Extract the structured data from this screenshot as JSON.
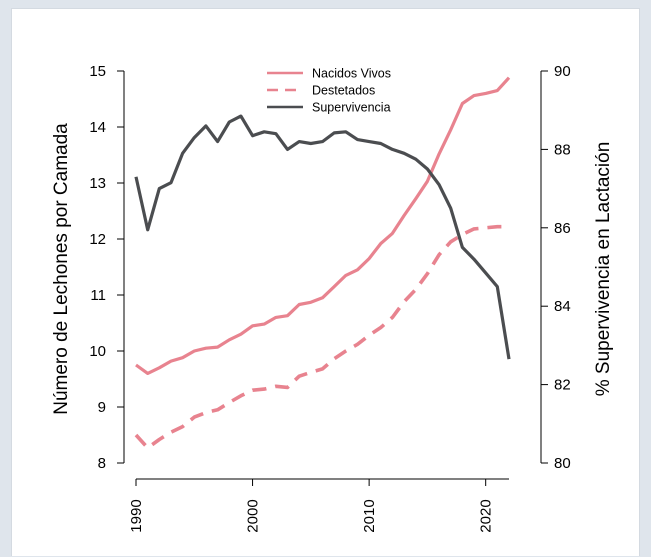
{
  "chart_data": {
    "type": "line",
    "title": "",
    "xlabel": "",
    "ylabel_left": "Número de Lechones por Camada",
    "ylabel_right": "% Supervivencia en Lactación",
    "xlim": [
      1990,
      2022
    ],
    "ylim_left": [
      8,
      15
    ],
    "ylim_right": [
      80,
      90
    ],
    "x_ticks": [
      "1990",
      "2000",
      "2010",
      "2020"
    ],
    "y_left_ticks": [
      "8",
      "9",
      "10",
      "11",
      "12",
      "13",
      "14",
      "15"
    ],
    "y_right_ticks": [
      "80",
      "82",
      "84",
      "86",
      "88",
      "90"
    ],
    "grid": false,
    "legend_position": "top-center",
    "x": [
      1990,
      1991,
      1992,
      1993,
      1994,
      1995,
      1996,
      1997,
      1998,
      1999,
      2000,
      2001,
      2002,
      2003,
      2004,
      2005,
      2006,
      2007,
      2008,
      2009,
      2010,
      2011,
      2012,
      2013,
      2014,
      2015,
      2016,
      2017,
      2018,
      2019,
      2020,
      2021,
      2022
    ],
    "series": [
      {
        "name": "Nacidos Vivos",
        "axis": "left",
        "style": "solid",
        "color": "#e8838f",
        "values": [
          9.75,
          9.6,
          9.7,
          9.82,
          9.88,
          10.0,
          10.05,
          10.07,
          10.2,
          10.3,
          10.45,
          10.48,
          10.6,
          10.63,
          10.83,
          10.87,
          10.95,
          11.15,
          11.35,
          11.45,
          11.65,
          11.92,
          12.1,
          12.42,
          12.72,
          13.03,
          13.52,
          13.95,
          14.42,
          14.56,
          14.6,
          14.65,
          14.88
        ]
      },
      {
        "name": "Destetados",
        "axis": "left",
        "style": "dashed",
        "color": "#e8838f",
        "values": [
          8.5,
          8.27,
          8.42,
          8.55,
          8.65,
          8.82,
          8.9,
          8.95,
          9.08,
          9.2,
          9.3,
          9.32,
          9.37,
          9.35,
          9.55,
          9.62,
          9.68,
          9.86,
          10.0,
          10.12,
          10.28,
          10.42,
          10.6,
          10.88,
          11.1,
          11.38,
          11.72,
          11.95,
          12.08,
          12.18,
          12.2,
          12.22,
          12.22
        ]
      },
      {
        "name": "Supervivencia",
        "axis": "right",
        "style": "solid",
        "color": "#4b4d50",
        "values": [
          87.3,
          85.95,
          87.0,
          87.15,
          87.9,
          88.3,
          88.6,
          88.2,
          88.7,
          88.85,
          88.35,
          88.45,
          88.4,
          88.0,
          88.2,
          88.15,
          88.2,
          88.42,
          88.45,
          88.25,
          88.2,
          88.15,
          88.0,
          87.9,
          87.75,
          87.5,
          87.1,
          86.5,
          85.5,
          85.2,
          84.85,
          84.5,
          82.65
        ]
      }
    ]
  }
}
